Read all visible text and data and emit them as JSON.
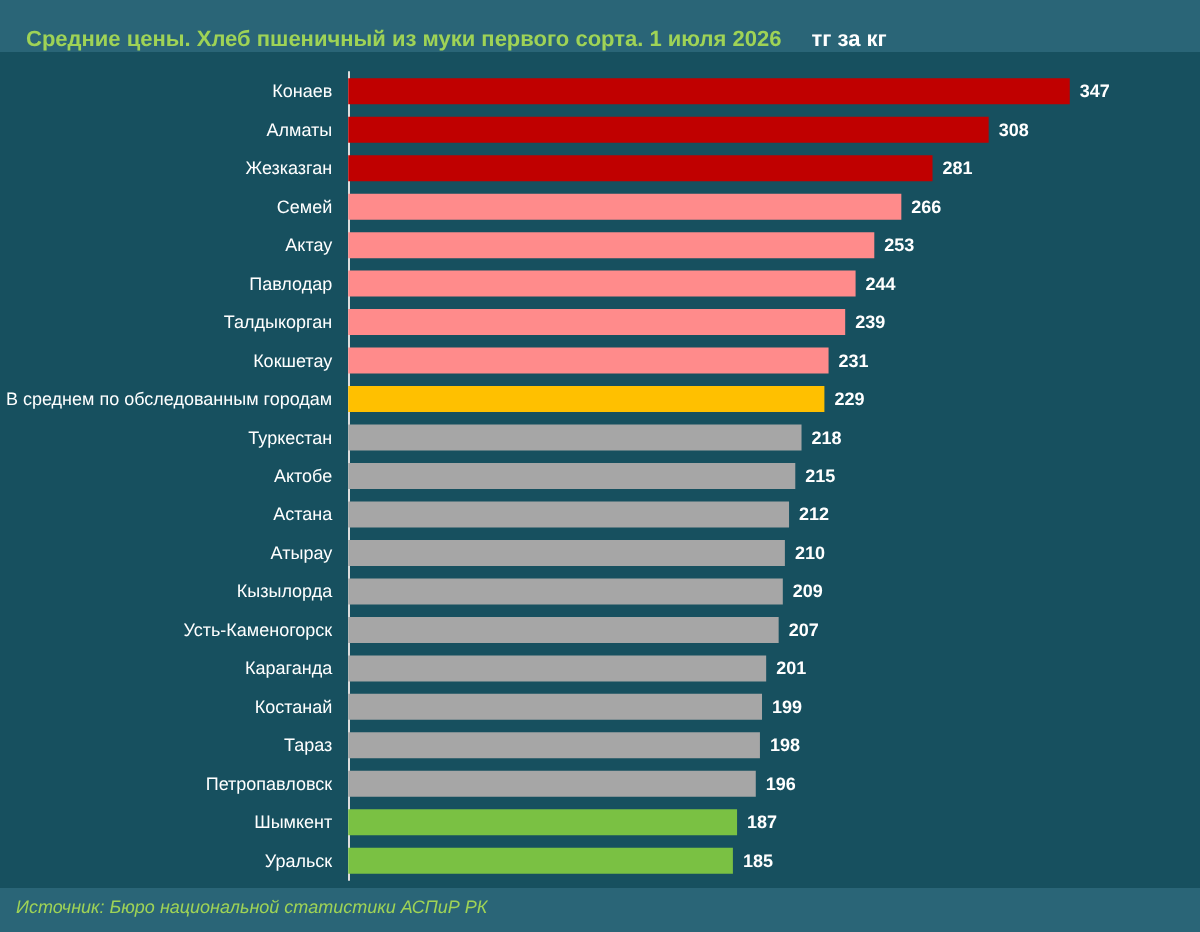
{
  "chart_data": {
    "type": "bar",
    "orientation": "horizontal",
    "title": "Средние цены. Хлеб пшеничный из муки первого сорта. 1 июля 2026",
    "subtitle": "тг за кг",
    "categories": [
      "Конаев",
      "Алматы",
      "Жезказган",
      "Семей",
      "Актау",
      "Павлодар",
      "Талдыкорган",
      "Кокшетау",
      "В среднем по обследованным городам",
      "Туркестан",
      "Актобе",
      "Астана",
      "Атырау",
      "Кызылорда",
      "Усть-Каменогорск",
      "Караганда",
      "Костанай",
      "Тараз",
      "Петропавловск",
      "Шымкент",
      "Уральск"
    ],
    "values": [
      347,
      308,
      281,
      266,
      253,
      244,
      239,
      231,
      229,
      218,
      215,
      212,
      210,
      209,
      207,
      201,
      199,
      198,
      196,
      187,
      185
    ],
    "colors": [
      "#c00000",
      "#c00000",
      "#c00000",
      "#ff8b8b",
      "#ff8b8b",
      "#ff8b8b",
      "#ff8b8b",
      "#ff8b8b",
      "#ffc000",
      "#a6a6a6",
      "#a6a6a6",
      "#a6a6a6",
      "#a6a6a6",
      "#a6a6a6",
      "#a6a6a6",
      "#a6a6a6",
      "#a6a6a6",
      "#a6a6a6",
      "#a6a6a6",
      "#7ac143",
      "#7ac143"
    ],
    "tick_labels": "y",
    "data_labels": true,
    "annotations": [
      "Источник: Бюро национальной статистики АСПиР РК"
    ]
  }
}
